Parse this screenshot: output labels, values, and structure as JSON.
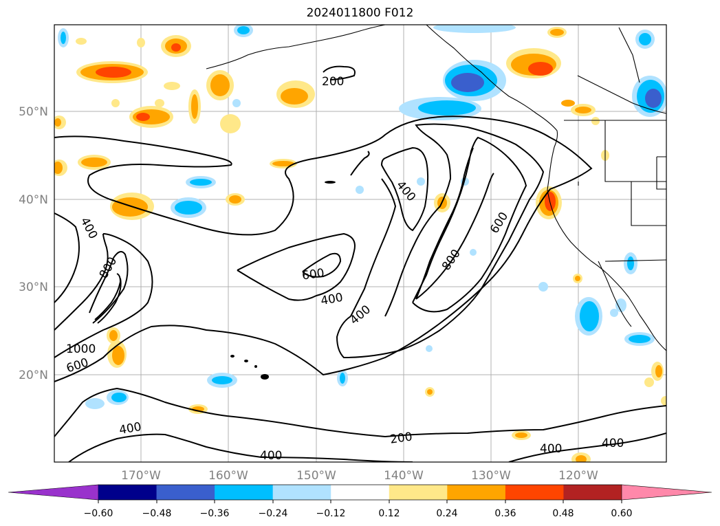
{
  "title": "2024011800 F012",
  "map": {
    "lat_labels": [
      "50°N",
      "40°N",
      "30°N",
      "20°N"
    ],
    "lon_labels": [
      "170°W",
      "160°W",
      "150°W",
      "140°W",
      "130°W",
      "120°W"
    ],
    "grid": true,
    "contour_labels": [
      "200",
      "200",
      "400",
      "400",
      "400",
      "400",
      "400",
      "400",
      "400",
      "400",
      "600",
      "600",
      "600",
      "800",
      "800",
      "1000"
    ]
  },
  "colorbar": {
    "ticks": [
      "−0.60",
      "−0.48",
      "−0.36",
      "−0.24",
      "−0.12",
      "0.12",
      "0.24",
      "0.36",
      "0.48",
      "0.60"
    ],
    "colors": [
      "#9932cc",
      "#00008b",
      "#3a5fcd",
      "#00bfff",
      "#b0e2ff",
      "#ffffff",
      "#ffe889",
      "#ffa500",
      "#ff4500",
      "#b22222",
      "#ff88aa"
    ],
    "extend": "both"
  }
}
